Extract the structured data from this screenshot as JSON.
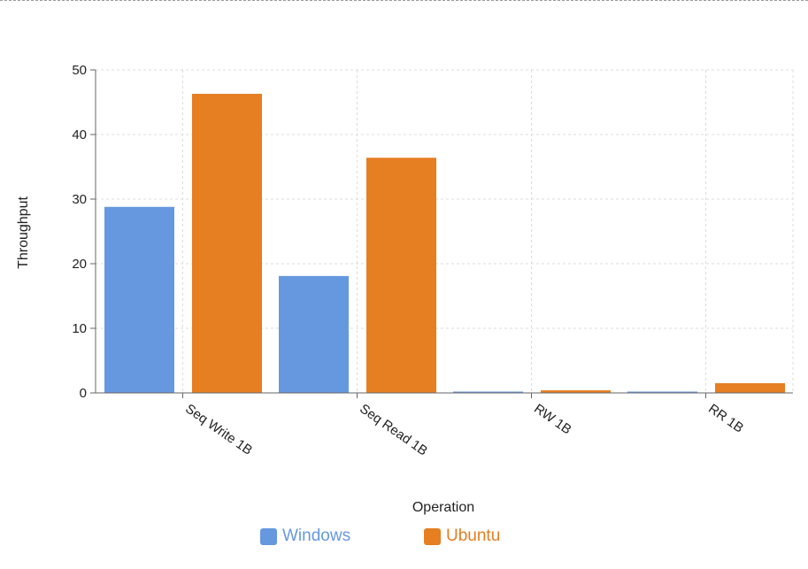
{
  "chart_data": {
    "type": "bar",
    "categories": [
      "Seq Write 1B",
      "Seq Read 1B",
      "RW 1B",
      "RR 1B"
    ],
    "series": [
      {
        "name": "Windows",
        "color": "#6698e0",
        "values": [
          28.8,
          18.1,
          0.15,
          0.1
        ]
      },
      {
        "name": "Ubuntu",
        "color": "#e67e22",
        "values": [
          46.3,
          36.4,
          0.4,
          1.5
        ]
      }
    ],
    "xlabel": "Operation",
    "ylabel": "Throughput",
    "ylim": [
      0,
      50
    ],
    "yticks": [
      0,
      10,
      20,
      30,
      40,
      50
    ],
    "grid": true,
    "legend_position": "bottom"
  }
}
